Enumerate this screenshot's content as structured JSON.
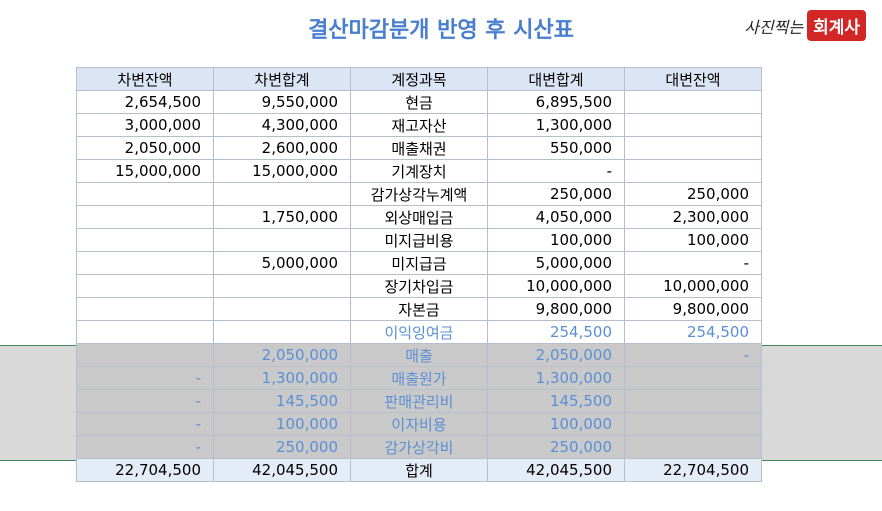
{
  "header": {
    "title": "결산마감분개 반영 후 시산표",
    "logo_script": "사진찍는",
    "logo_badge": "회계사"
  },
  "table": {
    "headers": [
      "차변잔액",
      "차변합계",
      "계정과목",
      "대변합계",
      "대변잔액"
    ],
    "rows": [
      [
        "2,654,500",
        "9,550,000",
        "현금",
        "6,895,500",
        null
      ],
      [
        "3,000,000",
        "4,300,000",
        "재고자산",
        "1,300,000",
        null
      ],
      [
        "2,050,000",
        "2,600,000",
        "매출채권",
        "550,000",
        null
      ],
      [
        "15,000,000",
        "15,000,000",
        "기계장치",
        "-",
        null
      ],
      [
        null,
        null,
        "감가상각누계액",
        "250,000",
        "250,000"
      ],
      [
        null,
        "1,750,000",
        "외상매입금",
        "4,050,000",
        "2,300,000"
      ],
      [
        null,
        null,
        "미지급비용",
        "100,000",
        "100,000"
      ],
      [
        null,
        "5,000,000",
        "미지급금",
        "5,000,000",
        "-"
      ],
      [
        null,
        null,
        "장기차입금",
        "10,000,000",
        "10,000,000"
      ],
      [
        null,
        null,
        "자본금",
        "9,800,000",
        "9,800,000"
      ],
      [
        null,
        null,
        "이익잉여금",
        "254,500",
        "254,500"
      ],
      [
        null,
        "2,050,000",
        "매출",
        "2,050,000",
        "-"
      ],
      [
        "-",
        "1,300,000",
        "매출원가",
        "1,300,000",
        null
      ],
      [
        "-",
        "145,500",
        "판매관리비",
        "145,500",
        null
      ],
      [
        "-",
        "100,000",
        "이자비용",
        "100,000",
        null
      ],
      [
        "-",
        "250,000",
        "감가상각비",
        "250,000",
        null
      ]
    ],
    "total": [
      "22,704,500",
      "42,045,500",
      "합계",
      "42,045,500",
      "22,704,500"
    ]
  }
}
